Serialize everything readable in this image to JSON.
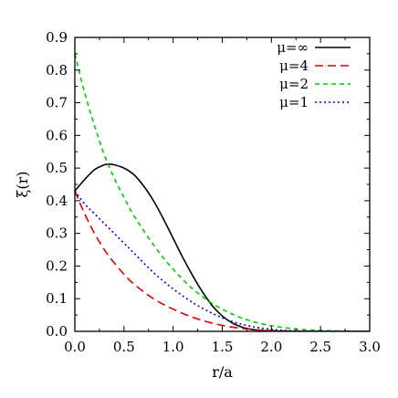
{
  "chart_data": {
    "type": "line",
    "title": "",
    "xlabel": "r/a",
    "ylabel": "ξ(r)",
    "xlim": [
      0.0,
      3.0
    ],
    "ylim": [
      0.0,
      0.9
    ],
    "xticks": [
      "0.0",
      "0.5",
      "1.0",
      "1.5",
      "2.0",
      "2.5",
      "3.0"
    ],
    "yticks": [
      "0.0",
      "0.1",
      "0.2",
      "0.3",
      "0.4",
      "0.5",
      "0.6",
      "0.7",
      "0.8",
      "0.9"
    ],
    "grid": false,
    "legend_position": "top-right",
    "series": [
      {
        "name": "μ=∞",
        "color": "#000000",
        "dash": "solid",
        "x": [
          0.0,
          0.1,
          0.2,
          0.3,
          0.35,
          0.4,
          0.5,
          0.6,
          0.7,
          0.8,
          0.9,
          1.0,
          1.1,
          1.2,
          1.3,
          1.4,
          1.5,
          1.6,
          1.7,
          1.8,
          1.9,
          2.0,
          2.2,
          2.5,
          3.0
        ],
        "y": [
          0.43,
          0.465,
          0.495,
          0.51,
          0.512,
          0.51,
          0.5,
          0.48,
          0.445,
          0.4,
          0.345,
          0.285,
          0.225,
          0.17,
          0.12,
          0.078,
          0.047,
          0.026,
          0.013,
          0.006,
          0.0025,
          0.001,
          0.0,
          0.0,
          0.0
        ]
      },
      {
        "name": "μ=4",
        "color": "#dd0000",
        "dash": "long-dash",
        "x": [
          0.0,
          0.1,
          0.2,
          0.3,
          0.4,
          0.5,
          0.6,
          0.8,
          1.0,
          1.2,
          1.4,
          1.6,
          1.8,
          2.0,
          2.2,
          2.5,
          3.0
        ],
        "y": [
          0.43,
          0.36,
          0.3,
          0.25,
          0.21,
          0.175,
          0.145,
          0.1,
          0.068,
          0.043,
          0.025,
          0.013,
          0.006,
          0.0025,
          0.001,
          0.0,
          0.0
        ]
      },
      {
        "name": "μ=2",
        "color": "#00cc00",
        "dash": "short-dash",
        "x": [
          0.0,
          0.1,
          0.2,
          0.3,
          0.4,
          0.5,
          0.6,
          0.8,
          1.0,
          1.2,
          1.4,
          1.6,
          1.8,
          2.0,
          2.2,
          2.4,
          2.6,
          2.8,
          3.0
        ],
        "y": [
          0.85,
          0.73,
          0.63,
          0.54,
          0.47,
          0.41,
          0.355,
          0.265,
          0.19,
          0.13,
          0.085,
          0.053,
          0.031,
          0.017,
          0.009,
          0.004,
          0.002,
          0.0008,
          0.0003
        ]
      },
      {
        "name": "μ=1",
        "color": "#0000dd",
        "dash": "dotted",
        "x": [
          0.0,
          0.1,
          0.2,
          0.3,
          0.4,
          0.5,
          0.6,
          0.8,
          1.0,
          1.2,
          1.4,
          1.6,
          1.8,
          2.0,
          2.2,
          2.5,
          3.0
        ],
        "y": [
          0.43,
          0.39,
          0.36,
          0.33,
          0.3,
          0.27,
          0.24,
          0.18,
          0.13,
          0.088,
          0.055,
          0.03,
          0.015,
          0.006,
          0.002,
          0.0005,
          0.0
        ]
      }
    ]
  }
}
